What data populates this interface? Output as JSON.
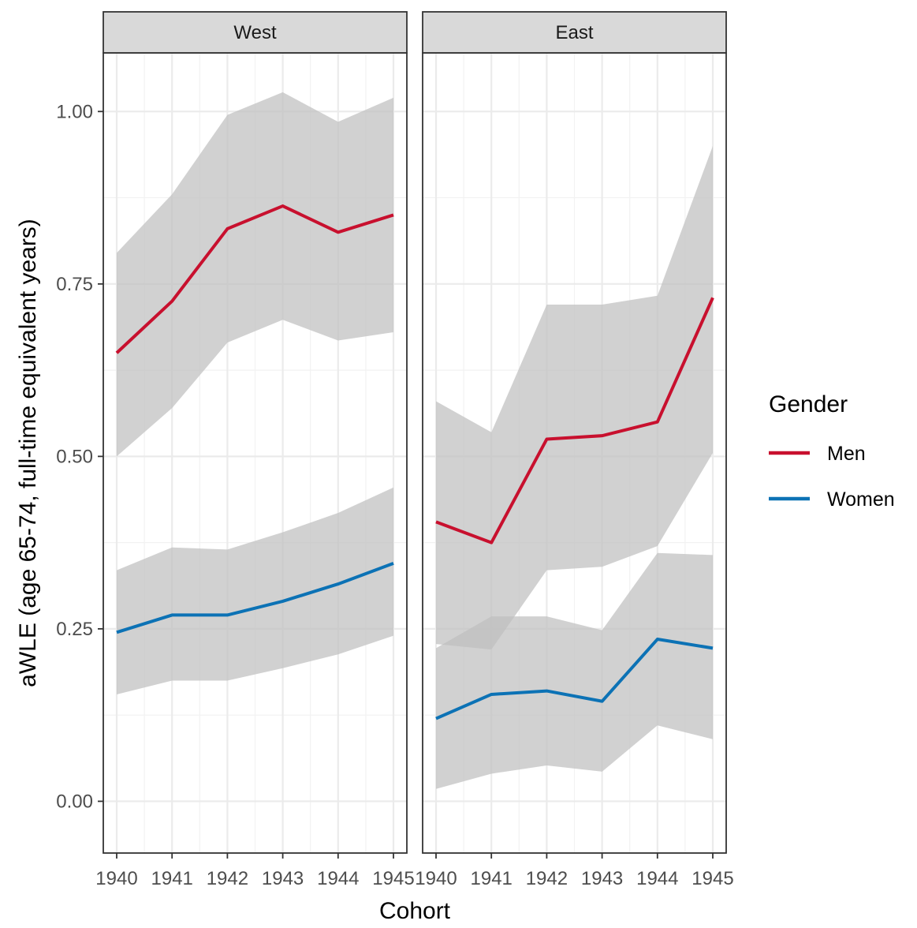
{
  "chart_data": {
    "type": "line",
    "xlabel": "Cohort",
    "ylabel": "aWLE (age 65-74, full-time equivalent years)",
    "x": [
      1940,
      1941,
      1942,
      1943,
      1944,
      1945
    ],
    "x_tick_labels": [
      "1940",
      "1941",
      "1942",
      "1943",
      "1944",
      "1945"
    ],
    "ylim": [
      -0.075,
      1.085
    ],
    "y_ticks": [
      0.0,
      0.25,
      0.5,
      0.75,
      1.0
    ],
    "y_tick_labels": [
      "0.00",
      "0.25",
      "0.50",
      "0.75",
      "1.00"
    ],
    "grid": true,
    "ribbon_color": "#bfbfbf",
    "legend": {
      "title": "Gender",
      "position": "right",
      "entries": [
        {
          "label": "Men",
          "color": "#c8102e"
        },
        {
          "label": "Women",
          "color": "#0c72b5"
        }
      ]
    },
    "panels": [
      {
        "name": "West",
        "series": [
          {
            "name": "Men",
            "color": "#c8102e",
            "values": [
              0.65,
              0.725,
              0.83,
              0.863,
              0.825,
              0.85
            ],
            "lower": [
              0.5,
              0.57,
              0.665,
              0.698,
              0.668,
              0.68
            ],
            "upper": [
              0.795,
              0.88,
              0.995,
              1.028,
              0.985,
              1.02
            ]
          },
          {
            "name": "Women",
            "color": "#0c72b5",
            "values": [
              0.245,
              0.27,
              0.27,
              0.29,
              0.315,
              0.345
            ],
            "lower": [
              0.155,
              0.175,
              0.175,
              0.193,
              0.213,
              0.24
            ],
            "upper": [
              0.335,
              0.368,
              0.365,
              0.39,
              0.418,
              0.455
            ]
          }
        ]
      },
      {
        "name": "East",
        "series": [
          {
            "name": "Men",
            "color": "#c8102e",
            "values": [
              0.405,
              0.375,
              0.525,
              0.53,
              0.55,
              0.73
            ],
            "lower": [
              0.228,
              0.22,
              0.335,
              0.34,
              0.37,
              0.505
            ],
            "upper": [
              0.58,
              0.535,
              0.72,
              0.72,
              0.733,
              0.95
            ]
          },
          {
            "name": "Women",
            "color": "#0c72b5",
            "values": [
              0.12,
              0.155,
              0.16,
              0.145,
              0.235,
              0.222
            ],
            "lower": [
              0.018,
              0.04,
              0.052,
              0.043,
              0.11,
              0.09
            ],
            "upper": [
              0.222,
              0.268,
              0.268,
              0.248,
              0.36,
              0.357
            ]
          }
        ]
      }
    ]
  }
}
